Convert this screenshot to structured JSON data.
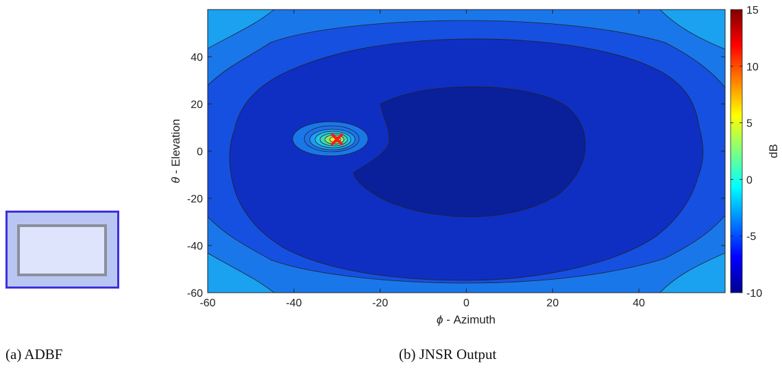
{
  "captions": {
    "a_label": "(a)",
    "a_text": "ADBF",
    "b_label": "(b)",
    "b_text": "JNSR Output"
  },
  "panel_a": {
    "outer_fill": "#b9c6f4",
    "outer_border": "#3b2fe0",
    "inner_fill": "#dde4fb",
    "inner_border": "#8a8f9a"
  },
  "chart_data": {
    "type": "heatmap",
    "subtype": "filled-contour",
    "xlabel_symbol": "ϕ",
    "xlabel_text": " - Azimuth",
    "ylabel_symbol": "θ",
    "ylabel_text": " - Elevation",
    "xlim": [
      -60,
      60
    ],
    "ylim": [
      -60,
      60
    ],
    "xticks": [
      -60,
      -40,
      -20,
      0,
      20,
      40
    ],
    "yticks": [
      -60,
      -40,
      -20,
      0,
      20,
      40
    ],
    "colorbar": {
      "label": "dB",
      "range": [
        -10,
        15
      ],
      "ticks": [
        -10,
        -5,
        0,
        5,
        10,
        15
      ],
      "colormap": "jet"
    },
    "contour_levels_db": [
      -9,
      -8,
      -7,
      -6
    ],
    "level_colors": [
      "#0a1f9a",
      "#0f2fc2",
      "#1650e0",
      "#1a77ea",
      "#1aa2f0"
    ],
    "jammer": {
      "azimuth": -30,
      "elevation": 5,
      "peak_db": 8,
      "marker": "x",
      "marker_color": "#ff1a1a"
    },
    "grid": false
  }
}
